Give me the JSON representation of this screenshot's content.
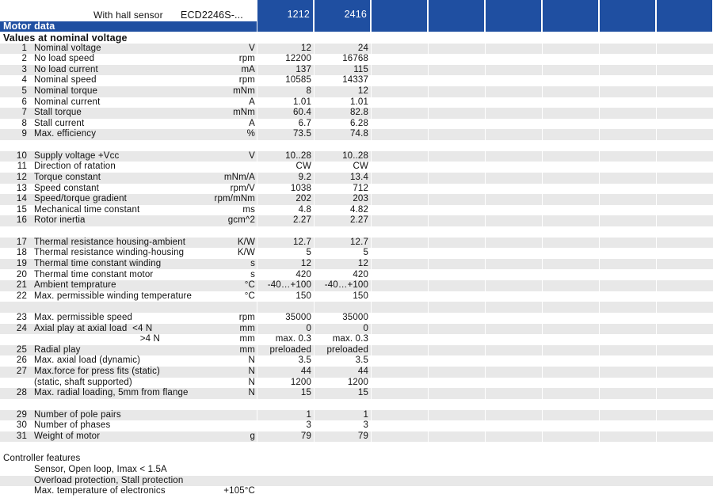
{
  "header": {
    "sensor_label": "With hall sensor",
    "model_label": "ECD2246S-...",
    "columns": [
      "1212",
      "2416"
    ],
    "motor_data_title": "Motor data",
    "section_title": "Values at nominal voltage",
    "accent_color": "#1f4fa1"
  },
  "rows": [
    {
      "num": "1",
      "desc": "Nominal voltage",
      "unit": "V",
      "v1": "12",
      "v2": "24",
      "shade": true
    },
    {
      "num": "2",
      "desc": "No load speed",
      "unit": "rpm",
      "v1": "12200",
      "v2": "16768",
      "shade": false
    },
    {
      "num": "3",
      "desc": "No load current",
      "unit": "mA",
      "v1": "137",
      "v2": "115",
      "shade": true
    },
    {
      "num": "4",
      "desc": "Nominal speed",
      "unit": "rpm",
      "v1": "10585",
      "v2": "14337",
      "shade": false
    },
    {
      "num": "5",
      "desc": "Nominal torque",
      "unit": "mNm",
      "v1": "8",
      "v2": "12",
      "shade": true
    },
    {
      "num": "6",
      "desc": "Nominal current",
      "unit": "A",
      "v1": "1.01",
      "v2": "1.01",
      "shade": false
    },
    {
      "num": "7",
      "desc": "Stall torque",
      "unit": "mNm",
      "v1": "60.4",
      "v2": "82.8",
      "shade": true
    },
    {
      "num": "8",
      "desc": "Stall current",
      "unit": "A",
      "v1": "6.7",
      "v2": "6.28",
      "shade": false
    },
    {
      "num": "9",
      "desc": "Max. efficiency",
      "unit": "%",
      "v1": "73.5",
      "v2": "74.8",
      "shade": true
    },
    {
      "num": "",
      "desc": "",
      "unit": "",
      "v1": "",
      "v2": "",
      "shade": false
    },
    {
      "num": "10",
      "desc": "Supply voltage +Vcc",
      "unit": "V",
      "v1": "10..28",
      "v2": "10..28",
      "shade": true
    },
    {
      "num": "11",
      "desc": "Direction of ratation",
      "unit": "",
      "v1": "CW",
      "v2": "CW",
      "shade": false
    },
    {
      "num": "12",
      "desc": "Torque constant",
      "unit": "mNm/A",
      "v1": "9.2",
      "v2": "13.4",
      "shade": true
    },
    {
      "num": "13",
      "desc": "Speed constant",
      "unit": "rpm/V",
      "v1": "1038",
      "v2": "712",
      "shade": false
    },
    {
      "num": "14",
      "desc": "Speed/torque gradient",
      "unit": "rpm/mNm",
      "v1": "202",
      "v2": "203",
      "shade": true
    },
    {
      "num": "15",
      "desc": "Mechanical time constant",
      "unit": "ms",
      "v1": "4.8",
      "v2": "4.82",
      "shade": false
    },
    {
      "num": "16",
      "desc": "Rotor inertia",
      "unit": "gcm^2",
      "v1": "2.27",
      "v2": "2.27",
      "shade": true
    },
    {
      "num": "",
      "desc": "",
      "unit": "",
      "v1": "",
      "v2": "",
      "shade": false
    },
    {
      "num": "17",
      "desc": "Thermal resistance housing-ambient",
      "unit": "K/W",
      "v1": "12.7",
      "v2": "12.7",
      "shade": true
    },
    {
      "num": "18",
      "desc": "Thermal resistance winding-housing",
      "unit": "K/W",
      "v1": "5",
      "v2": "5",
      "shade": false
    },
    {
      "num": "19",
      "desc": "Thermal time constant winding",
      "unit": "s",
      "v1": "12",
      "v2": "12",
      "shade": true
    },
    {
      "num": "20",
      "desc": "Thermal time constant motor",
      "unit": "s",
      "v1": "420",
      "v2": "420",
      "shade": false
    },
    {
      "num": "21",
      "desc": "Ambient temprature",
      "unit": "°C",
      "v1": "-40…+100",
      "v2": "-40…+100",
      "shade": true
    },
    {
      "num": "22",
      "desc": "Max. permissible winding temperature",
      "unit": "°C",
      "v1": "150",
      "v2": "150",
      "shade": false
    },
    {
      "num": "",
      "desc": "",
      "unit": "",
      "v1": "",
      "v2": "",
      "shade": true
    },
    {
      "num": "23",
      "desc": "Max. permissible speed",
      "unit": "rpm",
      "v1": "35000",
      "v2": "35000",
      "shade": false
    },
    {
      "num": "24",
      "desc": "Axial play at axial load  <4 N",
      "unit": "mm",
      "v1": "0",
      "v2": "0",
      "shade": true
    },
    {
      "num": "",
      "desc": "                                        >4 N",
      "unit": "mm",
      "v1": "max. 0.3",
      "v2": "max. 0.3",
      "shade": false
    },
    {
      "num": "25",
      "desc": "Radial play",
      "unit": "mm",
      "v1": "preloaded",
      "v2": "preloaded",
      "shade": true
    },
    {
      "num": "26",
      "desc": "Max. axial load (dynamic)",
      "unit": "N",
      "v1": "3.5",
      "v2": "3.5",
      "shade": false
    },
    {
      "num": "27",
      "desc": "Max.force for press fits (static)",
      "unit": "N",
      "v1": "44",
      "v2": "44",
      "shade": true
    },
    {
      "num": "",
      "desc": "(static, shaft supported)",
      "unit": "N",
      "v1": "1200",
      "v2": "1200",
      "shade": false
    },
    {
      "num": "28",
      "desc": "Max. radial loading, 5mm from flange",
      "unit": "N",
      "v1": "15",
      "v2": "15",
      "shade": true
    },
    {
      "num": "",
      "desc": "",
      "unit": "",
      "v1": "",
      "v2": "",
      "shade": false
    },
    {
      "num": "29",
      "desc": "Number of pole pairs",
      "unit": "",
      "v1": "1",
      "v2": "1",
      "shade": true
    },
    {
      "num": "30",
      "desc": "Number of phases",
      "unit": "",
      "v1": "3",
      "v2": "3",
      "shade": false
    },
    {
      "num": "31",
      "desc": "Weight of motor",
      "unit": "g",
      "v1": "79",
      "v2": "79",
      "shade": true
    },
    {
      "num": "",
      "desc": "",
      "unit": "",
      "v1": "",
      "v2": "",
      "shade": false
    }
  ],
  "controller": {
    "title": "Controller features",
    "items": [
      {
        "text": "Sensor, Open loop, Imax < 1.5A",
        "value": "",
        "shade": false
      },
      {
        "text": "Overload protection, Stall protection",
        "value": "",
        "shade": true
      },
      {
        "text": "Max. temperature of electronics",
        "value": "+105°C",
        "shade": false
      }
    ]
  }
}
